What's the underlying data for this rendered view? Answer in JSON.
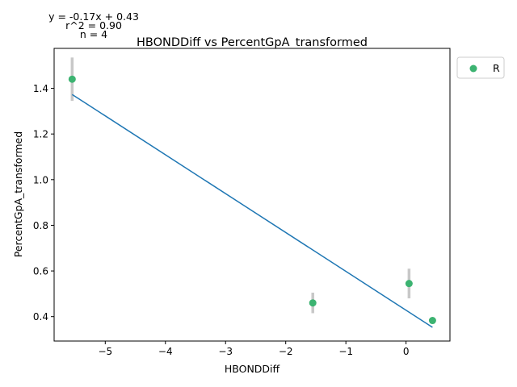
{
  "chart_data": {
    "type": "scatter",
    "title": "HBONDDiff vs PercentGpA_transformed",
    "xlabel": "HBONDDiff",
    "ylabel": "PercentGpA_transformed",
    "xlim": [
      -5.85,
      0.73
    ],
    "ylim": [
      0.293,
      1.575
    ],
    "xticks": [
      -5,
      -4,
      -3,
      -2,
      -1,
      0
    ],
    "xtick_labels": [
      "−5",
      "−4",
      "−3",
      "−2",
      "−1",
      "0"
    ],
    "yticks": [
      0.4,
      0.6,
      0.8,
      1.0,
      1.2,
      1.4
    ],
    "ytick_labels": [
      "0.4",
      "0.6",
      "0.8",
      "1.0",
      "1.2",
      "1.4"
    ],
    "grid": false,
    "legend": {
      "placement": "outside-top-right",
      "entries": [
        "R"
      ]
    },
    "annotations": [
      "y = -0.17x + 0.43",
      "r^2 = 0.90",
      "n = 4"
    ],
    "series": [
      {
        "name": "R",
        "color": "#3cb371",
        "points": [
          {
            "x": -5.55,
            "y": 1.44,
            "err": 0.095
          },
          {
            "x": -1.55,
            "y": 0.46,
            "err": 0.045
          },
          {
            "x": 0.05,
            "y": 0.545,
            "err": 0.065
          },
          {
            "x": 0.44,
            "y": 0.383,
            "err": 0.012
          }
        ]
      }
    ],
    "fit": {
      "color": "#1f77b4",
      "slope": -0.17,
      "intercept": 0.43,
      "x_range": [
        -5.55,
        0.44
      ],
      "y_range": [
        1.373,
        0.353
      ]
    },
    "error_bar_color": "#c8c8c8"
  }
}
